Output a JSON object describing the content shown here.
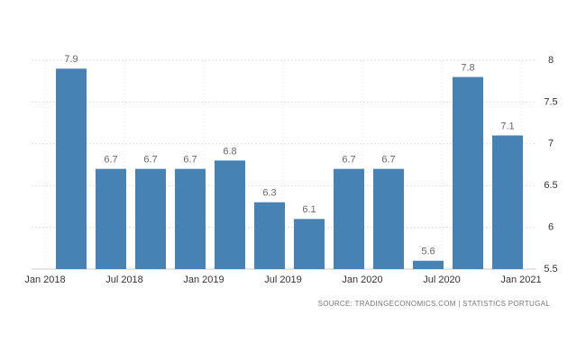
{
  "chart_data": {
    "type": "bar",
    "values": [
      7.9,
      6.7,
      6.7,
      6.7,
      6.8,
      6.3,
      6.1,
      6.7,
      6.7,
      5.6,
      7.8,
      7.1
    ],
    "x_labels": [
      "Jan 2018",
      "Jul 2018",
      "Jan 2019",
      "Jul 2019",
      "Jan 2020",
      "Jul 2020",
      "Jan 2021"
    ],
    "color": "#4682b4",
    "ylim": [
      5.5,
      8
    ],
    "yticks": [
      5.5,
      6,
      6.5,
      7,
      7.5,
      8
    ],
    "grid": true,
    "source": "SOURCE: TRADINGECONOMICS.COM  |  STATISTICS PORTUGAL"
  }
}
